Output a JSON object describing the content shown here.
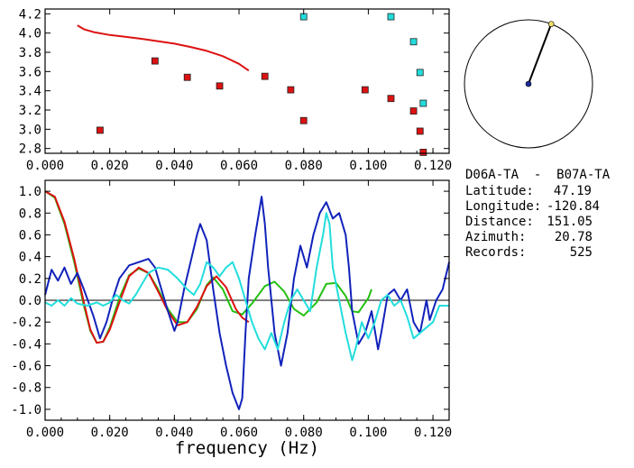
{
  "info": {
    "title": "D06A-TA  -  B07A-TA",
    "lines": [
      {
        "label": "Latitude:",
        "value": "47.19"
      },
      {
        "label": "Longitude:",
        "value": "-120.84"
      },
      {
        "label": "Distance:",
        "value": "151.05"
      },
      {
        "label": "Azimuth:",
        "value": "20.78"
      },
      {
        "label": "Records:",
        "value": "525"
      }
    ]
  },
  "colors": {
    "red": "#dd1111",
    "green": "#22c011",
    "blue": "#1122bb",
    "cyan": "#22dddd",
    "axis": "#000000"
  },
  "chart_data": [
    {
      "type": "scatter",
      "title": "",
      "xlabel": "",
      "ylabel": "",
      "xlim": [
        0,
        0.125
      ],
      "ylim": [
        2.75,
        4.25
      ],
      "xticks": [
        "0.000",
        "0.020",
        "0.040",
        "0.060",
        "0.080",
        "0.100",
        "0.120"
      ],
      "yticks": [
        "2.8",
        "3.0",
        "3.2",
        "3.4",
        "3.6",
        "3.8",
        "4.0",
        "4.2"
      ],
      "series": [
        {
          "kind": "line",
          "color": "red",
          "points": [
            [
              0.01,
              4.08
            ],
            [
              0.012,
              4.04
            ],
            [
              0.015,
              4.01
            ],
            [
              0.02,
              3.98
            ],
            [
              0.025,
              3.96
            ],
            [
              0.03,
              3.94
            ],
            [
              0.035,
              3.915
            ],
            [
              0.04,
              3.89
            ],
            [
              0.045,
              3.855
            ],
            [
              0.05,
              3.815
            ],
            [
              0.055,
              3.76
            ],
            [
              0.06,
              3.68
            ],
            [
              0.063,
              3.61
            ]
          ]
        },
        {
          "kind": "points",
          "color": "red",
          "points": [
            [
              0.017,
              2.99
            ],
            [
              0.034,
              3.71
            ],
            [
              0.044,
              3.54
            ],
            [
              0.054,
              3.45
            ],
            [
              0.068,
              3.55
            ],
            [
              0.076,
              3.41
            ],
            [
              0.08,
              3.09
            ],
            [
              0.099,
              3.41
            ],
            [
              0.107,
              3.32
            ],
            [
              0.114,
              3.19
            ],
            [
              0.116,
              2.98
            ],
            [
              0.117,
              2.76
            ]
          ]
        },
        {
          "kind": "points",
          "color": "cyan",
          "points": [
            [
              0.08,
              4.17
            ],
            [
              0.107,
              4.17
            ],
            [
              0.114,
              3.91
            ],
            [
              0.116,
              3.59
            ],
            [
              0.117,
              3.27
            ]
          ]
        }
      ]
    },
    {
      "type": "line",
      "title": "",
      "xlabel": "frequency (Hz)",
      "ylabel": "",
      "xlim": [
        0,
        0.125
      ],
      "ylim": [
        -1.1,
        1.1
      ],
      "xticks": [
        "0.000",
        "0.020",
        "0.040",
        "0.060",
        "0.080",
        "0.100",
        "0.120"
      ],
      "yticks": [
        "1.0",
        "0.8",
        "0.6",
        "0.4",
        "0.2",
        "0.0",
        "-0.2",
        "-0.4",
        "-0.6",
        "-0.8",
        "-1.0"
      ],
      "series": [
        {
          "color": "green",
          "points": [
            [
              0,
              1.0
            ],
            [
              0.003,
              0.94
            ],
            [
              0.006,
              0.7
            ],
            [
              0.009,
              0.35
            ],
            [
              0.012,
              -0.05
            ],
            [
              0.014,
              -0.28
            ],
            [
              0.016,
              -0.39
            ],
            [
              0.018,
              -0.38
            ],
            [
              0.02,
              -0.25
            ],
            [
              0.023,
              0.02
            ],
            [
              0.026,
              0.23
            ],
            [
              0.029,
              0.29
            ],
            [
              0.032,
              0.25
            ],
            [
              0.035,
              0.1
            ],
            [
              0.038,
              -0.08
            ],
            [
              0.041,
              -0.2
            ],
            [
              0.044,
              -0.2
            ],
            [
              0.047,
              -0.08
            ],
            [
              0.05,
              0.14
            ],
            [
              0.052,
              0.21
            ],
            [
              0.055,
              0.1
            ],
            [
              0.058,
              -0.1
            ],
            [
              0.061,
              -0.13
            ],
            [
              0.064,
              -0.03
            ],
            [
              0.068,
              0.13
            ],
            [
              0.071,
              0.17
            ],
            [
              0.074,
              0.08
            ],
            [
              0.077,
              -0.08
            ],
            [
              0.08,
              -0.14
            ],
            [
              0.084,
              -0.02
            ],
            [
              0.087,
              0.15
            ],
            [
              0.09,
              0.16
            ],
            [
              0.093,
              0.04
            ],
            [
              0.095,
              -0.1
            ],
            [
              0.097,
              -0.11
            ],
            [
              0.1,
              0.02
            ],
            [
              0.101,
              0.1
            ]
          ]
        },
        {
          "color": "red",
          "points": [
            [
              0,
              1.0
            ],
            [
              0.003,
              0.95
            ],
            [
              0.006,
              0.72
            ],
            [
              0.009,
              0.38
            ],
            [
              0.012,
              -0.02
            ],
            [
              0.014,
              -0.27
            ],
            [
              0.016,
              -0.39
            ],
            [
              0.018,
              -0.38
            ],
            [
              0.02,
              -0.27
            ],
            [
              0.023,
              -0.02
            ],
            [
              0.026,
              0.22
            ],
            [
              0.029,
              0.3
            ],
            [
              0.032,
              0.25
            ],
            [
              0.035,
              0.08
            ],
            [
              0.038,
              -0.1
            ],
            [
              0.041,
              -0.23
            ],
            [
              0.044,
              -0.2
            ],
            [
              0.047,
              -0.06
            ],
            [
              0.05,
              0.13
            ],
            [
              0.053,
              0.22
            ],
            [
              0.056,
              0.12
            ],
            [
              0.059,
              -0.08
            ],
            [
              0.061,
              -0.16
            ],
            [
              0.063,
              -0.2
            ]
          ]
        },
        {
          "color": "blue",
          "points": [
            [
              0,
              0.05
            ],
            [
              0.002,
              0.28
            ],
            [
              0.004,
              0.18
            ],
            [
              0.006,
              0.3
            ],
            [
              0.008,
              0.15
            ],
            [
              0.01,
              0.25
            ],
            [
              0.012,
              0.1
            ],
            [
              0.015,
              -0.15
            ],
            [
              0.017,
              -0.35
            ],
            [
              0.019,
              -0.2
            ],
            [
              0.021,
              0.02
            ],
            [
              0.023,
              0.2
            ],
            [
              0.026,
              0.32
            ],
            [
              0.029,
              0.35
            ],
            [
              0.032,
              0.38
            ],
            [
              0.034,
              0.3
            ],
            [
              0.036,
              0.1
            ],
            [
              0.038,
              -0.1
            ],
            [
              0.04,
              -0.28
            ],
            [
              0.041,
              -0.2
            ],
            [
              0.043,
              0.1
            ],
            [
              0.045,
              0.35
            ],
            [
              0.047,
              0.6
            ],
            [
              0.048,
              0.7
            ],
            [
              0.05,
              0.55
            ],
            [
              0.052,
              0.1
            ],
            [
              0.054,
              -0.3
            ],
            [
              0.056,
              -0.6
            ],
            [
              0.058,
              -0.85
            ],
            [
              0.06,
              -1.0
            ],
            [
              0.061,
              -0.9
            ],
            [
              0.062,
              -0.3
            ],
            [
              0.063,
              0.2
            ],
            [
              0.065,
              0.6
            ],
            [
              0.067,
              0.95
            ],
            [
              0.068,
              0.7
            ],
            [
              0.069,
              0.3
            ],
            [
              0.071,
              -0.3
            ],
            [
              0.073,
              -0.6
            ],
            [
              0.075,
              -0.3
            ],
            [
              0.077,
              0.2
            ],
            [
              0.079,
              0.5
            ],
            [
              0.081,
              0.3
            ],
            [
              0.083,
              0.6
            ],
            [
              0.085,
              0.8
            ],
            [
              0.087,
              0.9
            ],
            [
              0.089,
              0.75
            ],
            [
              0.091,
              0.8
            ],
            [
              0.093,
              0.6
            ],
            [
              0.094,
              0.3
            ],
            [
              0.095,
              -0.1
            ],
            [
              0.097,
              -0.4
            ],
            [
              0.099,
              -0.3
            ],
            [
              0.101,
              -0.1
            ],
            [
              0.103,
              -0.45
            ],
            [
              0.104,
              -0.3
            ],
            [
              0.106,
              0.05
            ],
            [
              0.108,
              0.1
            ],
            [
              0.11,
              0.0
            ],
            [
              0.112,
              0.1
            ],
            [
              0.114,
              -0.2
            ],
            [
              0.116,
              -0.3
            ],
            [
              0.118,
              0.0
            ],
            [
              0.119,
              -0.18
            ],
            [
              0.121,
              0.0
            ],
            [
              0.123,
              0.1
            ],
            [
              0.125,
              0.35
            ]
          ]
        },
        {
          "color": "cyan",
          "points": [
            [
              0,
              -0.02
            ],
            [
              0.002,
              -0.05
            ],
            [
              0.004,
              0.0
            ],
            [
              0.006,
              -0.05
            ],
            [
              0.008,
              0.02
            ],
            [
              0.01,
              -0.03
            ],
            [
              0.013,
              -0.05
            ],
            [
              0.016,
              -0.02
            ],
            [
              0.018,
              -0.05
            ],
            [
              0.02,
              -0.02
            ],
            [
              0.022,
              0.05
            ],
            [
              0.024,
              0.0
            ],
            [
              0.026,
              -0.03
            ],
            [
              0.028,
              0.05
            ],
            [
              0.03,
              0.15
            ],
            [
              0.032,
              0.25
            ],
            [
              0.035,
              0.3
            ],
            [
              0.038,
              0.28
            ],
            [
              0.041,
              0.2
            ],
            [
              0.044,
              0.1
            ],
            [
              0.046,
              0.05
            ],
            [
              0.048,
              0.15
            ],
            [
              0.05,
              0.35
            ],
            [
              0.052,
              0.3
            ],
            [
              0.054,
              0.22
            ],
            [
              0.056,
              0.3
            ],
            [
              0.058,
              0.35
            ],
            [
              0.06,
              0.2
            ],
            [
              0.062,
              0.0
            ],
            [
              0.064,
              -0.2
            ],
            [
              0.066,
              -0.35
            ],
            [
              0.068,
              -0.45
            ],
            [
              0.07,
              -0.3
            ],
            [
              0.072,
              -0.45
            ],
            [
              0.074,
              -0.2
            ],
            [
              0.076,
              0.0
            ],
            [
              0.078,
              0.1
            ],
            [
              0.08,
              0.0
            ],
            [
              0.082,
              -0.1
            ],
            [
              0.084,
              0.3
            ],
            [
              0.086,
              0.6
            ],
            [
              0.087,
              0.8
            ],
            [
              0.088,
              0.7
            ],
            [
              0.089,
              0.3
            ],
            [
              0.091,
              0.0
            ],
            [
              0.093,
              -0.3
            ],
            [
              0.095,
              -0.55
            ],
            [
              0.096,
              -0.45
            ],
            [
              0.098,
              -0.2
            ],
            [
              0.1,
              -0.35
            ],
            [
              0.102,
              -0.2
            ],
            [
              0.104,
              0.0
            ],
            [
              0.106,
              0.05
            ],
            [
              0.108,
              -0.05
            ],
            [
              0.11,
              0.0
            ],
            [
              0.112,
              -0.15
            ],
            [
              0.114,
              -0.35
            ],
            [
              0.116,
              -0.3
            ],
            [
              0.118,
              -0.25
            ],
            [
              0.12,
              -0.2
            ],
            [
              0.122,
              -0.05
            ],
            [
              0.125,
              -0.05
            ]
          ]
        }
      ]
    }
  ],
  "compass": {
    "azimuth_deg": 20.78,
    "line_color": "#000000",
    "center_color": "#1a2a9a",
    "tip_color": "#f2e06a"
  }
}
